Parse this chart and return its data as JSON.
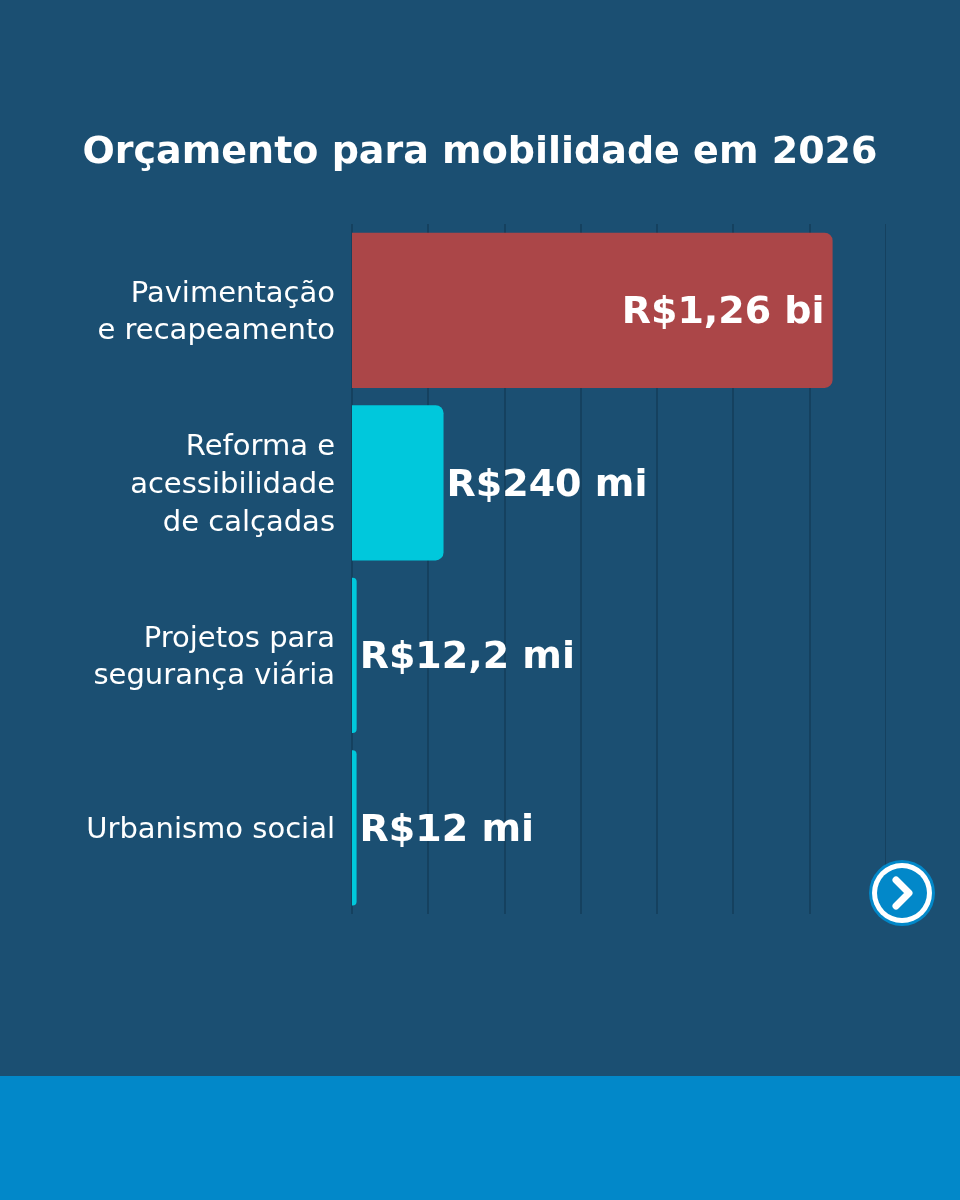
{
  "chart_data": {
    "type": "bar",
    "orientation": "horizontal",
    "title": "Orçamento para mobilidade em 2026",
    "categories": [
      "Pavimentação\ne recapeamento",
      "Reforma e\nacessibilidade\nde calçadas",
      "Projetos para\nsegurança viária",
      "Urbanismo social"
    ],
    "values": [
      1260,
      240,
      12.2,
      12
    ],
    "value_labels": [
      "R$1,26 bi",
      "R$240 mi",
      "R$12,2 mi",
      "R$12 mi"
    ],
    "colors": [
      "#ab4648",
      "#00c8dc",
      "#00c8dc",
      "#00c8dc"
    ],
    "xlim": [
      0,
      1400
    ],
    "xticks": [
      {
        "value": 0,
        "label": null
      },
      {
        "value": 200,
        "label": null
      },
      {
        "value": 400,
        "label": null
      },
      {
        "value": 600,
        "label": null
      },
      {
        "value": 800,
        "label": null
      },
      {
        "value": 1000,
        "label": null
      },
      {
        "value": 1200,
        "label": null
      },
      {
        "value": 1400,
        "label": null
      }
    ],
    "grid": "x",
    "tick_labels": "y",
    "legend": false
  }
}
